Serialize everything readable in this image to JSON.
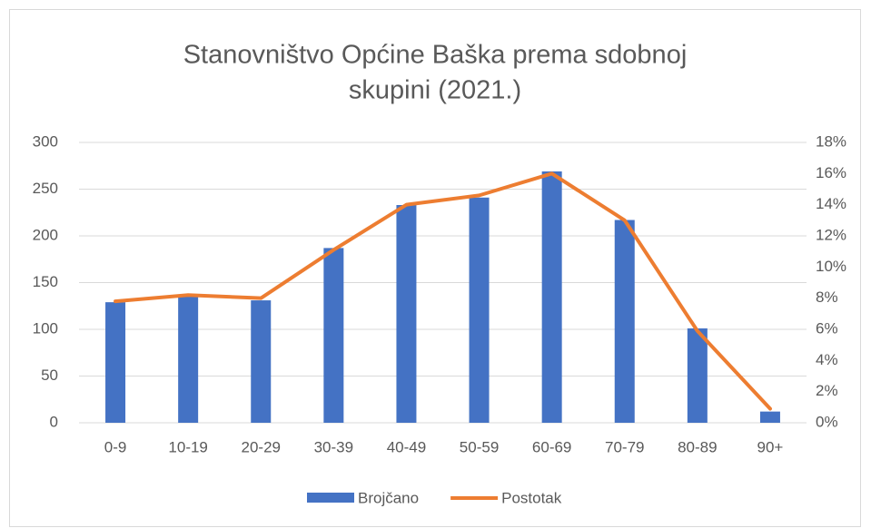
{
  "chart_data": {
    "type": "bar+line",
    "title": [
      "Stanovništvo Općine Baška prema sdobnoj",
      "skupini (2021.)"
    ],
    "categories": [
      "0-9",
      "10-19",
      "20-29",
      "30-39",
      "40-49",
      "50-59",
      "60-69",
      "70-79",
      "80-89",
      "90+"
    ],
    "series": [
      {
        "name": "Brojčano",
        "type": "bar",
        "color": "#4472c4",
        "values": [
          129,
          135,
          131,
          187,
          233,
          241,
          269,
          217,
          101,
          12
        ]
      },
      {
        "name": "Postotak",
        "type": "line",
        "axis": "y2",
        "color": "#ed7d31",
        "values": [
          7.8,
          8.2,
          8.0,
          11.1,
          14.0,
          14.6,
          16.0,
          13.0,
          5.9,
          0.9
        ]
      }
    ],
    "ylim": [
      0,
      300
    ],
    "yticks": [
      0,
      50,
      100,
      150,
      200,
      250,
      300
    ],
    "y2lim": [
      0,
      18
    ],
    "y2ticks": [
      {
        "value": 0,
        "label": "0%"
      },
      {
        "value": 2,
        "label": "2%"
      },
      {
        "value": 4,
        "label": "4%"
      },
      {
        "value": 6,
        "label": "6%"
      },
      {
        "value": 8,
        "label": "8%"
      },
      {
        "value": 10,
        "label": "10%"
      },
      {
        "value": 12,
        "label": "12%"
      },
      {
        "value": 14,
        "label": "14%"
      },
      {
        "value": 16,
        "label": "16%"
      },
      {
        "value": 18,
        "label": "18%"
      }
    ],
    "grid": true,
    "legend": "bottom"
  }
}
